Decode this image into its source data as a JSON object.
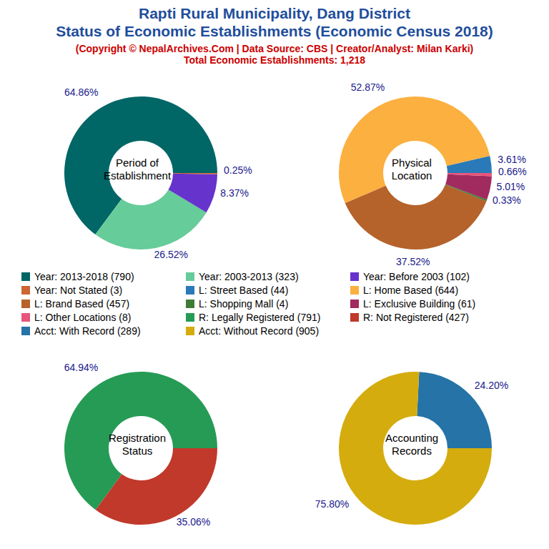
{
  "title": "Rapti Rural Municipality, Dang District",
  "title2": "Status of Economic Establishments (Economic Census 2018)",
  "subtitle": "(Copyright © NepalArchives.Com | Data Source: CBS | Creator/Analyst: Milan Karki)",
  "subtitle2": "Total Economic Establishments: 1,218",
  "chart_data": [
    {
      "type": "pie",
      "title": "Period of\nEstablishment",
      "categories": [
        "Year: 2013-2018 (790)",
        "Year: 2003-2013 (323)",
        "Year: Before 2003 (102)",
        "Year: Not Stated (3)"
      ],
      "values": [
        64.86,
        26.52,
        8.37,
        0.25
      ],
      "value_labels": [
        "64.86%",
        "26.52%",
        "8.37%",
        "0.25%"
      ],
      "colors": [
        "#006666",
        "#66cc99",
        "#6633cc",
        "#cc6633"
      ],
      "data_labels": true
    },
    {
      "type": "pie",
      "title": "Physical\nLocation",
      "categories": [
        "L: Street Based (44)",
        "L: Home Based (644)",
        "L: Brand Based (457)",
        "L: Shopping Mall (4)",
        "L: Exclusive Building (61)",
        "L: Other Locations (8)"
      ],
      "values": [
        3.61,
        52.87,
        37.52,
        0.33,
        5.01,
        0.66
      ],
      "value_labels": [
        "3.61%",
        "52.87%",
        "37.52%",
        "0.33%",
        "5.01%",
        "0.66%"
      ],
      "colors": [
        "#2a7ab9",
        "#fbb040",
        "#b5622b",
        "#3e7d35",
        "#a12a5e",
        "#e8557a"
      ],
      "data_labels": true
    },
    {
      "type": "pie",
      "title": "Registration\nStatus",
      "categories": [
        "R: Legally Registered (791)",
        "R: Not Registered (427)"
      ],
      "values": [
        64.94,
        35.06
      ],
      "value_labels": [
        "64.94%",
        "35.06%"
      ],
      "colors": [
        "#269b55",
        "#c0392b"
      ],
      "data_labels": true
    },
    {
      "type": "pie",
      "title": "Accounting\nRecords",
      "categories": [
        "Acct: With Record (289)",
        "Acct: Without Record (905)"
      ],
      "values": [
        24.2,
        75.8
      ],
      "value_labels": [
        "24.20%",
        "75.80%"
      ],
      "colors": [
        "#2573a7",
        "#d4ac0d"
      ],
      "data_labels": true
    }
  ]
}
